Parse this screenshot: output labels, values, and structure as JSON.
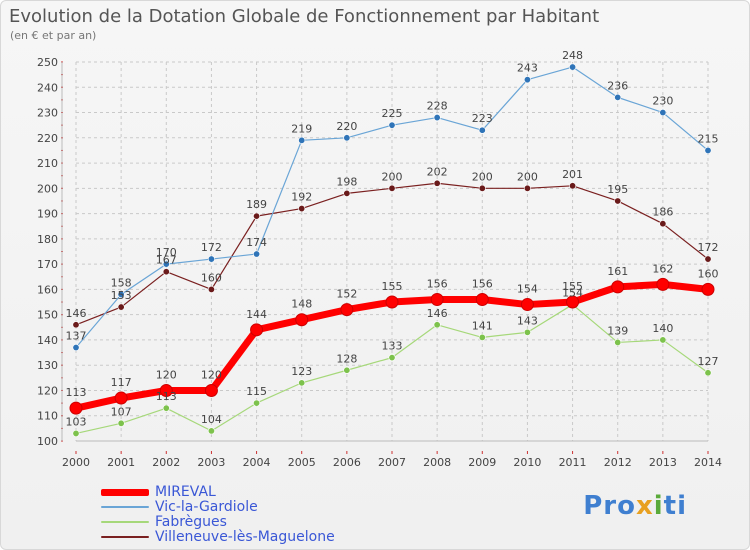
{
  "title": "Evolution de la Dotation Globale de Fonctionnement par Habitant",
  "subtitle": "(en € et par an)",
  "brand": {
    "parts": [
      {
        "text": "Pro",
        "color": "#3f7fd0"
      },
      {
        "text": "x",
        "color": "#e8a020"
      },
      {
        "text": "i",
        "color": "#5aaa3a"
      },
      {
        "text": "ti",
        "color": "#3f7fd0"
      }
    ]
  },
  "colors": {
    "grid": "#c9c9c9",
    "axis_text": "#444444",
    "label_text": "#444444",
    "legend_text": "#3a57d6"
  },
  "chart_data": {
    "type": "line",
    "x": [
      "2000",
      "2001",
      "2002",
      "2003",
      "2004",
      "2005",
      "2006",
      "2007",
      "2008",
      "2009",
      "2010",
      "2011",
      "2012",
      "2013",
      "2014"
    ],
    "ylim": [
      100,
      250
    ],
    "yticks": [
      100,
      110,
      120,
      130,
      140,
      150,
      160,
      170,
      180,
      190,
      200,
      210,
      220,
      230,
      240,
      250
    ],
    "grid": true,
    "legend_placement": "bottom-left",
    "series": [
      {
        "name": "Villeneuve-lès-Maguelone",
        "color": "#7a2020",
        "marker": "#6a1a1a",
        "width": 1.2,
        "values": [
          146,
          153,
          167,
          160,
          189,
          192,
          198,
          200,
          202,
          200,
          200,
          201,
          195,
          186,
          172
        ]
      },
      {
        "name": "Vic-la-Gardiole",
        "color": "#6aa5d6",
        "marker": "#2f74b8",
        "width": 1.2,
        "values": [
          137,
          158,
          170,
          172,
          174,
          219,
          220,
          225,
          228,
          223,
          243,
          248,
          236,
          230,
          215
        ]
      },
      {
        "name": "Fabrègues",
        "color": "#a6d87a",
        "marker": "#7dc24c",
        "width": 1.2,
        "values": [
          103,
          107,
          113,
          104,
          115,
          123,
          128,
          133,
          146,
          141,
          143,
          154,
          139,
          140,
          127
        ]
      },
      {
        "name": "MIREVAL",
        "color": "#ff0000",
        "marker": "#ff0000",
        "width": 7,
        "values": [
          113,
          117,
          120,
          120,
          144,
          148,
          152,
          155,
          156,
          156,
          154,
          155,
          161,
          162,
          160
        ]
      }
    ],
    "legend": [
      "MIREVAL",
      "Vic-la-Gardiole",
      "Fabrègues",
      "Villeneuve-lès-Maguelone"
    ]
  }
}
